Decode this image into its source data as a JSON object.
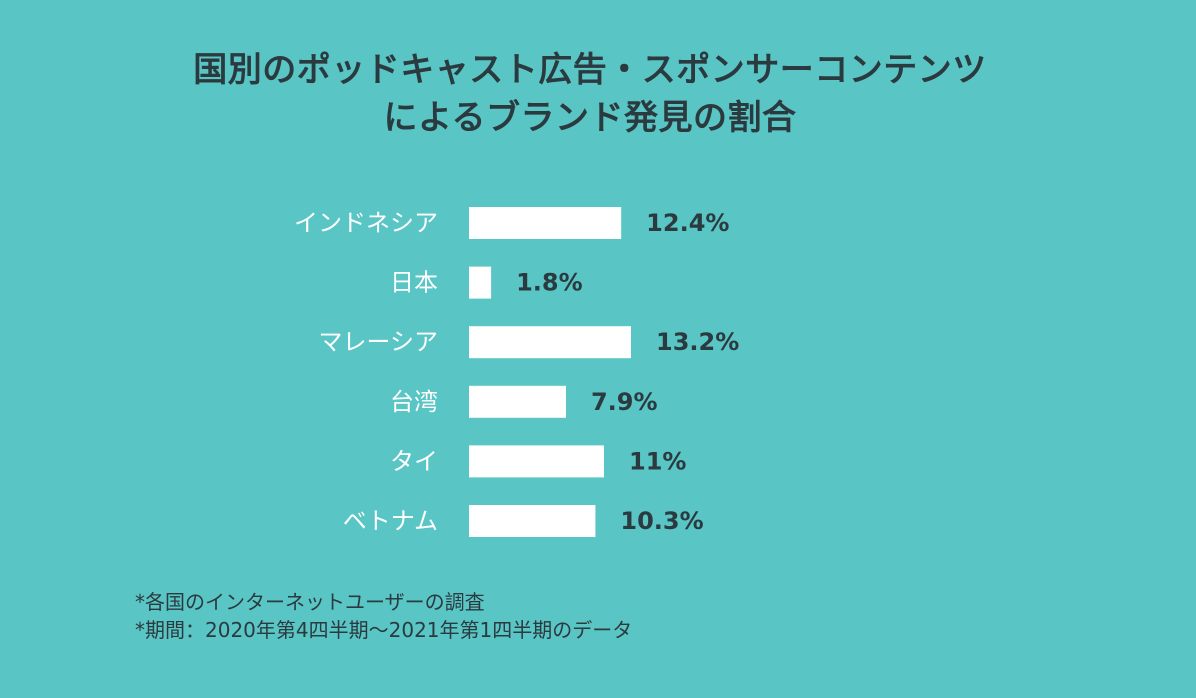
{
  "chart_data": {
    "type": "bar",
    "orientation": "horizontal",
    "title": "国別のポッドキャスト広告・スポンサーコンテンツによるブランド発見の割合",
    "title_lines": [
      "国別のポッドキャスト広告・スポンサーコンテンツ",
      "によるブランド発見の割合"
    ],
    "categories": [
      "インドネシア",
      "日本",
      "マレーシア",
      "台湾",
      "タイ",
      "ベトナム"
    ],
    "values": [
      12.4,
      1.8,
      13.2,
      7.9,
      11,
      10.3
    ],
    "value_labels": [
      "12.4%",
      "1.8%",
      "13.2%",
      "7.9%",
      "11%",
      "10.3%"
    ],
    "unit": "%",
    "grid": false,
    "legend": "none",
    "colors": {
      "background": "#59c5c5",
      "bar": "#ffffff",
      "title": "#2b3a3f",
      "category_text": "#ffffff",
      "value_text": "#2b3a3f"
    }
  },
  "footnotes": [
    "*各国のインターネットユーザーの調査",
    "*期間：2020年第4四半期〜2021年第1四半期のデータ"
  ]
}
